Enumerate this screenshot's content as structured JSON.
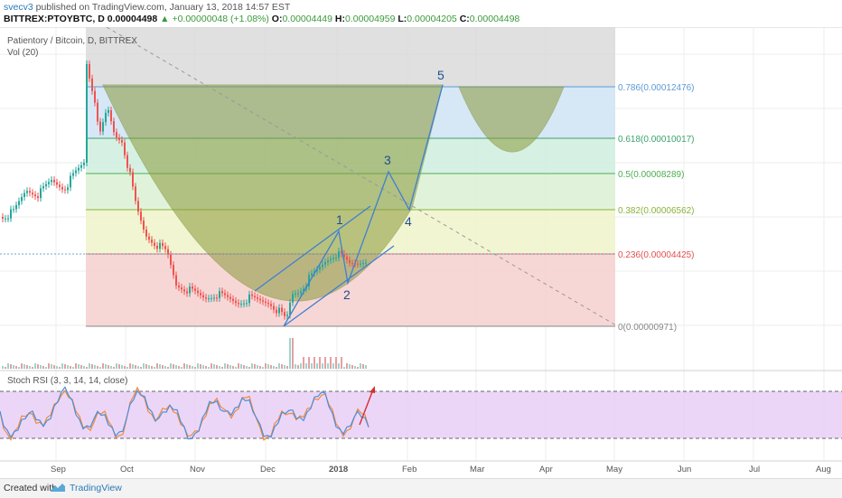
{
  "header": {
    "author": "svecv3",
    "published": "published on TradingView.com, January 13, 2018 14:57 EST",
    "symbol": "BITTREX:PTOYBTC, D",
    "price": "0.00004498",
    "change": "▲ +0.00000048 (+1.08%)",
    "open_label": "O:",
    "open": "0.00004449",
    "high_label": "H:",
    "high": "0.00004959",
    "low_label": "L:",
    "low": "0.00004205",
    "close_label": "C:",
    "close": "0.00004498"
  },
  "legend": {
    "title": "Patientory / Bitcoin, D, BITTREX",
    "volume": "Vol (20)"
  },
  "fib_levels": [
    {
      "label": "0.786(0.00012476)",
      "value": 0.00012476,
      "color": "#5b9bd5"
    },
    {
      "label": "0.618(0.00010017)",
      "value": 0.00010017,
      "color": "#3aa36b"
    },
    {
      "label": "0.5(0.00008289)",
      "value": 8.289e-05,
      "color": "#4caf50"
    },
    {
      "label": "0.382(0.00006562)",
      "value": 6.562e-05,
      "color": "#8bb23a"
    },
    {
      "label": "0.236(0.00004425)",
      "value": 4.425e-05,
      "color": "#e05050"
    },
    {
      "label": "0(0.00000971)",
      "value": 9.71e-06,
      "color": "#888888"
    }
  ],
  "waves": [
    "1",
    "2",
    "3",
    "4",
    "5"
  ],
  "stoch_rsi": {
    "title": "Stoch RSI (3, 3, 14, 14, close)"
  },
  "time_axis": [
    "Sep",
    "Oct",
    "Nov",
    "Dec",
    "2018",
    "Feb",
    "Mar",
    "Apr",
    "May",
    "Jun",
    "Jul",
    "Aug"
  ],
  "colors": {
    "up": "#26a69a",
    "down": "#ef5350",
    "rsi_fill": "#e5c8f5",
    "k_line": "#4a90d9",
    "d_line": "#f08a3a",
    "arrow": "#d32f2f"
  },
  "footer": {
    "created_with": "Created with",
    "brand": "TradingView"
  }
}
